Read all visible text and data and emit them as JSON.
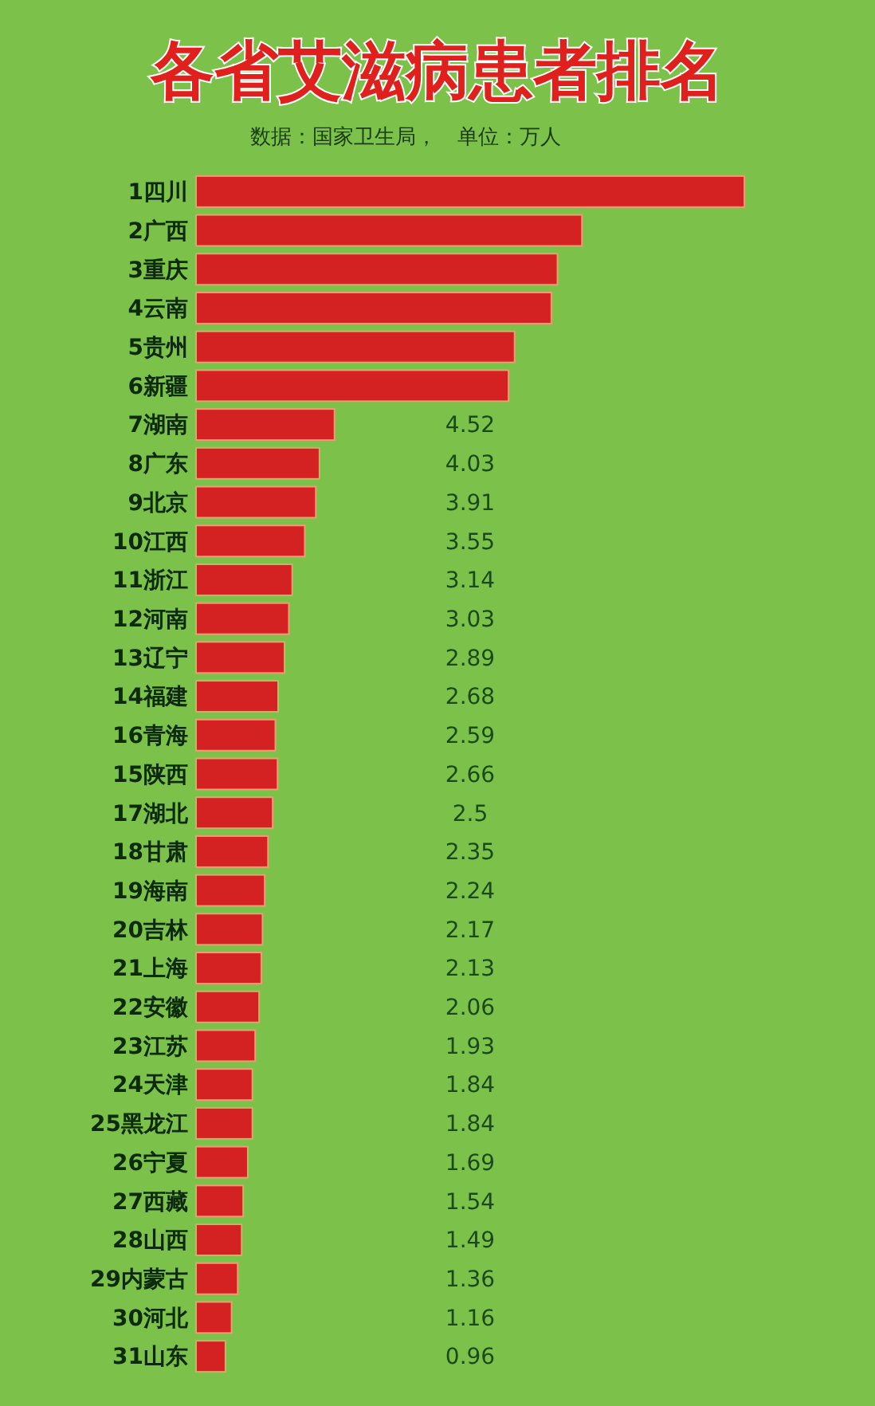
{
  "chart_data": {
    "type": "bar",
    "orientation": "horizontal",
    "title": "各省艾滋病患者排名",
    "subtitle": "数据：国家卫生局，　单位：万人",
    "relative": false,
    "categories": [
      "1四川",
      "2广西",
      "3重庆",
      "4云南",
      "5贵州",
      "6新疆",
      "7湖南",
      "8广东",
      "9北京",
      "10江西",
      "11浙江",
      "12河南",
      "13辽宁",
      "14福建",
      "16青海",
      "15陕西",
      "17湖北",
      "18甘肃",
      "19海南",
      "20吉林",
      "21上海",
      "22安徽",
      "23江苏",
      "24天津",
      "25黑龙江",
      "26宁夏",
      "27西藏",
      "28山西",
      "29内蒙古",
      "30河北",
      "31山东"
    ],
    "values": [
      17.9,
      12.6,
      11.8,
      11.6,
      10.4,
      10.2,
      4.52,
      4.03,
      3.91,
      3.55,
      3.14,
      3.03,
      2.89,
      2.68,
      2.59,
      2.66,
      2.5,
      2.35,
      2.24,
      2.17,
      2.13,
      2.06,
      1.93,
      1.84,
      1.84,
      1.69,
      1.54,
      1.49,
      1.36,
      1.16,
      0.96
    ],
    "value_labels": [
      null,
      null,
      null,
      null,
      null,
      null,
      "4.52",
      "4.03",
      "3.91",
      "3.55",
      "3.14",
      "3.03",
      "2.89",
      "2.68",
      "2.59",
      "2.66",
      "2.5",
      "2.35",
      "2.24",
      "2.17",
      "2.13",
      "2.06",
      "1.93",
      "1.84",
      "1.84",
      "1.69",
      "1.54",
      "1.49",
      "1.36",
      "1.16",
      "0.96"
    ],
    "color": "#d42222"
  }
}
